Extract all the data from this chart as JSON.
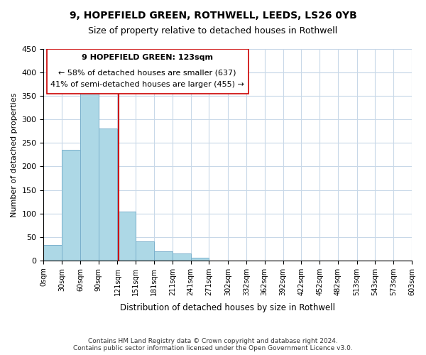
{
  "title": "9, HOPEFIELD GREEN, ROTHWELL, LEEDS, LS26 0YB",
  "subtitle": "Size of property relative to detached houses in Rothwell",
  "xlabel": "Distribution of detached houses by size in Rothwell",
  "ylabel": "Number of detached properties",
  "bar_color": "#add8e6",
  "bar_edge_color": "#7ab0cc",
  "background_color": "#ffffff",
  "grid_color": "#c8d8e8",
  "annotation_box_color": "#ffffff",
  "annotation_line_color": "#cc0000",
  "bins": [
    0,
    30,
    60,
    90,
    121,
    151,
    181,
    211,
    241,
    271,
    302,
    332,
    362,
    392,
    422,
    452,
    482,
    513,
    543,
    573,
    603
  ],
  "bin_labels": [
    "0sqm",
    "30sqm",
    "60sqm",
    "90sqm",
    "121sqm",
    "151sqm",
    "181sqm",
    "211sqm",
    "241sqm",
    "271sqm",
    "302sqm",
    "332sqm",
    "362sqm",
    "392sqm",
    "422sqm",
    "452sqm",
    "482sqm",
    "513sqm",
    "543sqm",
    "573sqm",
    "603sqm"
  ],
  "counts": [
    33,
    235,
    363,
    280,
    104,
    40,
    20,
    15,
    5,
    0,
    0,
    0,
    0,
    0,
    0,
    0,
    0,
    0,
    0,
    0
  ],
  "property_size": 123,
  "annotation_text_line1": "9 HOPEFIELD GREEN: 123sqm",
  "annotation_text_line2": "← 58% of detached houses are smaller (637)",
  "annotation_text_line3": "41% of semi-detached houses are larger (455) →",
  "vline_x": 123,
  "ylim": [
    0,
    450
  ],
  "footer": "Contains HM Land Registry data © Crown copyright and database right 2024.\nContains public sector information licensed under the Open Government Licence v3.0."
}
